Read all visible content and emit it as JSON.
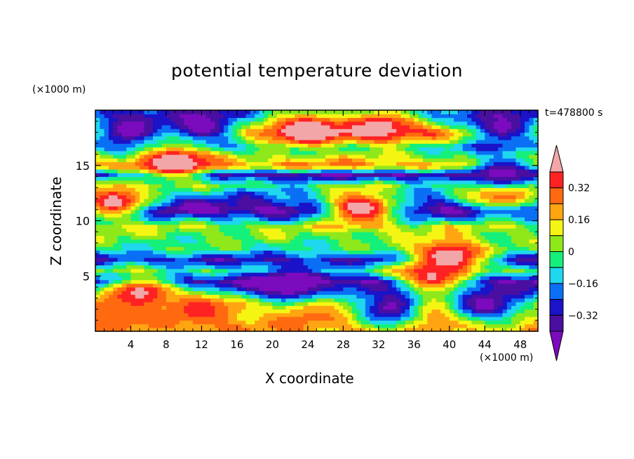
{
  "chart_data": {
    "type": "heatmap",
    "title": "potential temperature deviation",
    "xlabel": "X coordinate",
    "ylabel": "Z coordinate",
    "x_unit": "(×1000 m)",
    "y_unit": "(×1000 m)",
    "time_label": "t=478800 s",
    "x_ticks": [
      4,
      8,
      12,
      16,
      20,
      24,
      28,
      32,
      36,
      40,
      44,
      48
    ],
    "y_ticks": [
      5,
      10,
      15
    ],
    "xlim": [
      0,
      50
    ],
    "ylim": [
      0,
      20
    ],
    "colorbar": {
      "levels": [
        -0.48,
        -0.4,
        -0.32,
        -0.24,
        -0.16,
        -0.08,
        0,
        0.08,
        0.16,
        0.24,
        0.32,
        0.4
      ],
      "tick_labels": [
        "0.32",
        "0.16",
        "0",
        "−0.16",
        "−0.32"
      ],
      "tick_values": [
        0.32,
        0.16,
        0,
        -0.16,
        -0.32
      ],
      "colors": [
        "#7b0bbd",
        "#4a0fa0",
        "#1a13c8",
        "#0a6ff5",
        "#1fd7ef",
        "#15f07a",
        "#8ee81a",
        "#f5f513",
        "#ffa512",
        "#ff6a10",
        "#ff2222",
        "#f3a6a8"
      ]
    },
    "bands": [
      {
        "z": 19.5,
        "value": -0.2
      },
      {
        "z": 18.0,
        "value": 0.35
      },
      {
        "z": 16.7,
        "value": -0.15
      },
      {
        "z": 15.0,
        "value": 0.25
      },
      {
        "z": 14.2,
        "value": -0.4
      },
      {
        "z": 13.2,
        "value": -0.05
      },
      {
        "z": 12.3,
        "value": -0.2
      },
      {
        "z": 11.0,
        "value": -0.45
      },
      {
        "z": 9.5,
        "value": 0.05
      },
      {
        "z": 7.5,
        "value": -0.05
      },
      {
        "z": 6.5,
        "value": -0.3
      },
      {
        "z": 5.5,
        "value": -0.05
      },
      {
        "z": 4.5,
        "value": -0.45
      },
      {
        "z": 2.5,
        "value": 0.1
      },
      {
        "z": 0.5,
        "value": 0.2
      }
    ],
    "features": [
      {
        "x": 4,
        "z": 18.2,
        "value": -0.5
      },
      {
        "x": 12,
        "z": 18.5,
        "value": -0.5
      },
      {
        "x": 24,
        "z": 18.3,
        "value": 0.5
      },
      {
        "x": 32,
        "z": 18.5,
        "value": 0.45
      },
      {
        "x": 46,
        "z": 18.5,
        "value": -0.45
      },
      {
        "x": 9,
        "z": 15.3,
        "value": 0.5
      },
      {
        "x": 2,
        "z": 11.8,
        "value": 0.45
      },
      {
        "x": 30,
        "z": 11.2,
        "value": 0.5
      },
      {
        "x": 46,
        "z": 12.7,
        "value": 0.5
      },
      {
        "x": 40,
        "z": 6.8,
        "value": 0.5
      },
      {
        "x": 38,
        "z": 4.8,
        "value": 0.45
      },
      {
        "x": 5,
        "z": 3.5,
        "value": 0.45
      },
      {
        "x": 12,
        "z": 2.0,
        "value": 0.35
      },
      {
        "x": 24,
        "z": 2.0,
        "value": 0.3
      },
      {
        "x": 34,
        "z": 2.2,
        "value": -0.5
      },
      {
        "x": 40,
        "z": 1.8,
        "value": 0.35
      },
      {
        "x": 44,
        "z": 2.5,
        "value": -0.45
      },
      {
        "x": 1,
        "z": 1.5,
        "value": 0.3
      },
      {
        "x": 22,
        "z": 4.2,
        "value": -0.5
      },
      {
        "x": 46,
        "z": 14.3,
        "value": -0.45
      }
    ]
  }
}
